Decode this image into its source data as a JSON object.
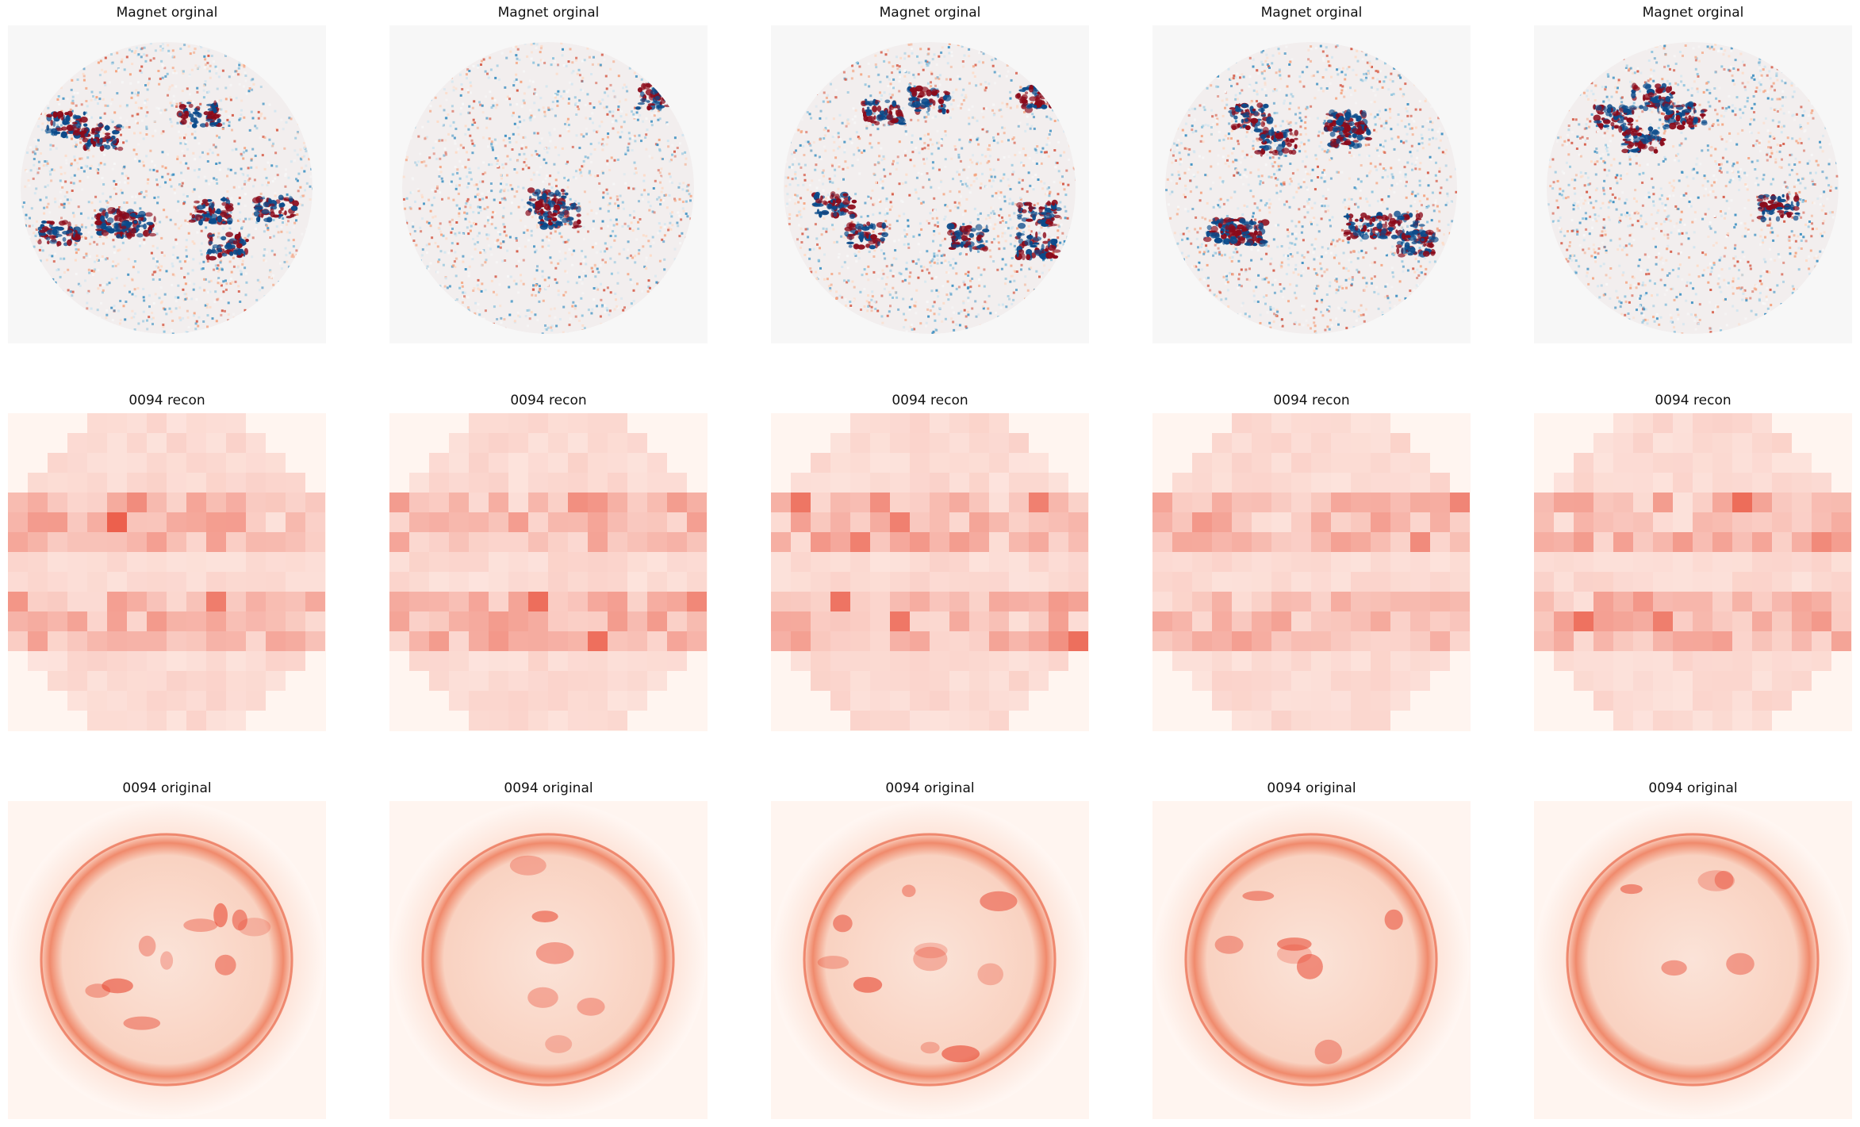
{
  "figure": {
    "rows": [
      {
        "kind": "magnet",
        "panels": [
          {
            "title": "Magnet orginal"
          },
          {
            "title": "Magnet orginal"
          },
          {
            "title": "Magnet orginal"
          },
          {
            "title": "Magnet orginal"
          },
          {
            "title": "Magnet orginal"
          }
        ]
      },
      {
        "kind": "recon",
        "panels": [
          {
            "title": "0094 recon"
          },
          {
            "title": "0094 recon"
          },
          {
            "title": "0094 recon"
          },
          {
            "title": "0094 recon"
          },
          {
            "title": "0094 recon"
          }
        ]
      },
      {
        "kind": "original",
        "panels": [
          {
            "title": "0094 original"
          },
          {
            "title": "0094 original"
          },
          {
            "title": "0094 original"
          },
          {
            "title": "0094 original"
          },
          {
            "title": "0094 original"
          }
        ]
      }
    ],
    "colors": {
      "background": "#f7f7f7",
      "magnet_red": "#8b0a1a",
      "magnet_blue": "#0a4a8a",
      "reds_light": "#fff5f0",
      "reds_dark": "#e8452f"
    }
  }
}
